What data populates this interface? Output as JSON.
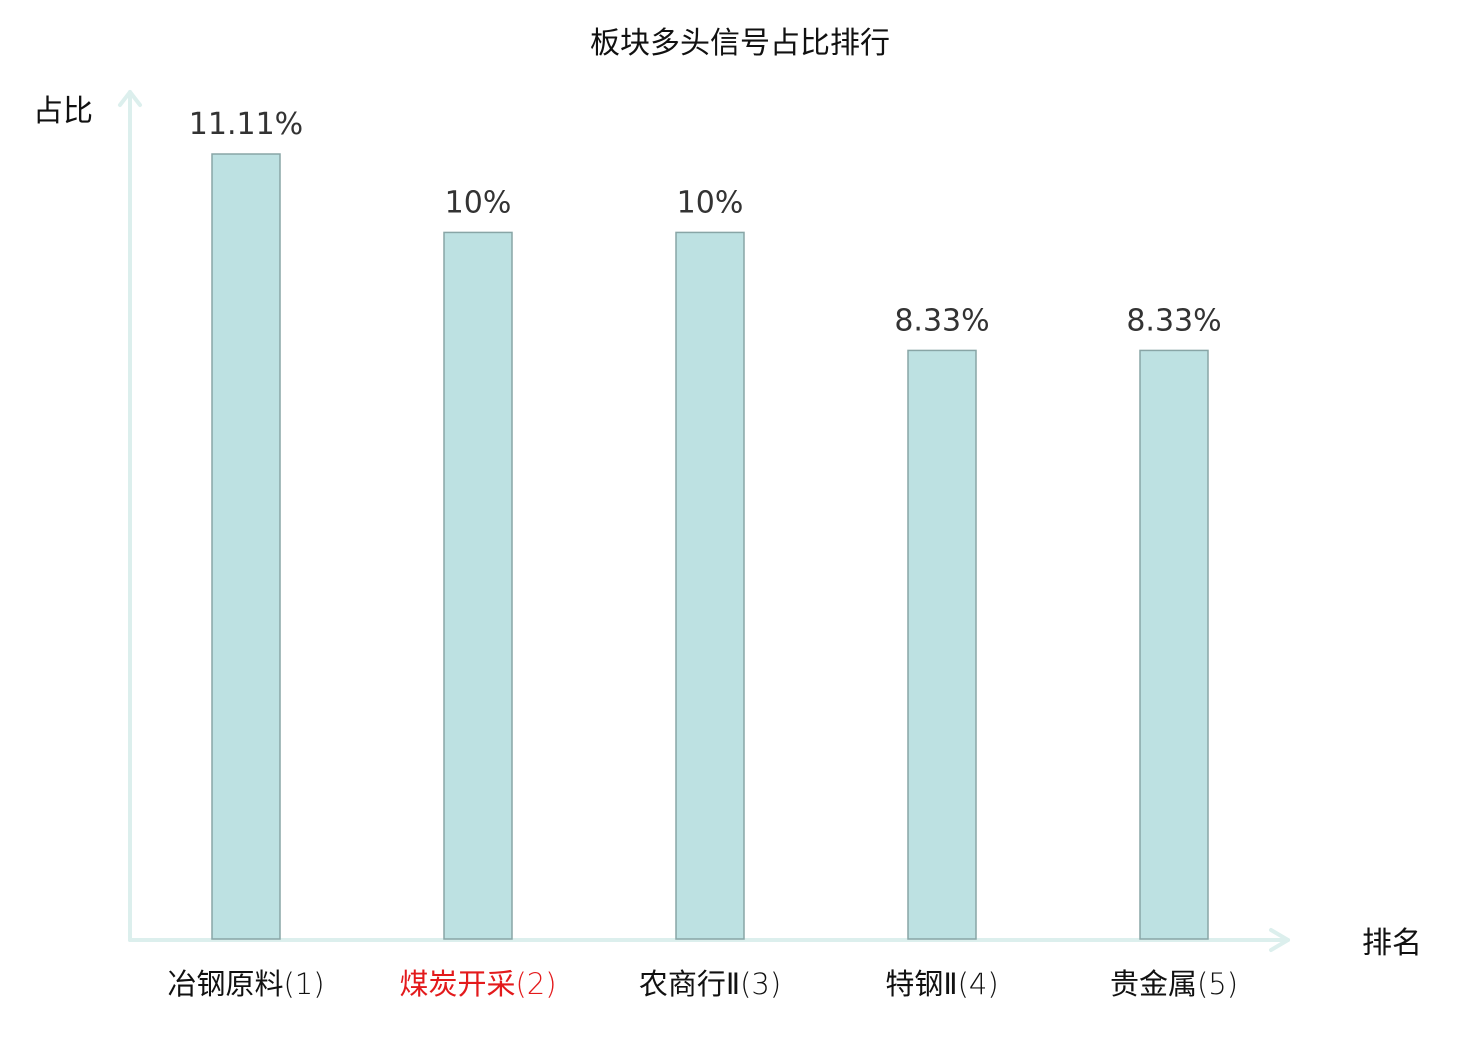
{
  "colors": {
    "bar_fill": "#bde1e2",
    "bar_stroke": "#88a5a6",
    "axis": "#dcefed",
    "text": "#111111",
    "value_text": "#333333",
    "highlight_text": "#e31a1c"
  },
  "chart_data": {
    "type": "bar",
    "title": "板块多头信号占比排行",
    "xlabel": "排名",
    "ylabel": "占比",
    "categories": [
      "冶钢原料(1)",
      "煤炭开采(2)",
      "农商行Ⅱ(3)",
      "特钢Ⅱ(4)",
      "贵金属(5)"
    ],
    "category_names": [
      "冶钢原料",
      "煤炭开采",
      "农商行Ⅱ",
      "特钢Ⅱ",
      "贵金属"
    ],
    "category_ranks": [
      "(1)",
      "(2)",
      "(3)",
      "(4)",
      "(5)"
    ],
    "highlighted_category": "煤炭开采(2)",
    "values": [
      11.11,
      10,
      10,
      8.33,
      8.33
    ],
    "value_labels": [
      "11.11%",
      "10%",
      "10%",
      "8.33%",
      "8.33%"
    ],
    "ylim": [
      0,
      11.11
    ],
    "grid": false,
    "legend": "none"
  }
}
